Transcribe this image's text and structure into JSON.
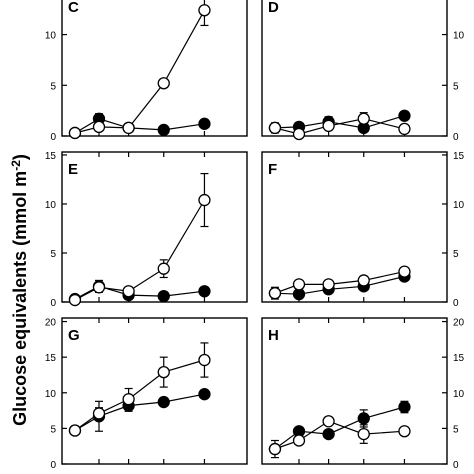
{
  "y_title": "Glucose equivalents (mmol m",
  "y_title_sup": "-2",
  "y_title_end": ")",
  "chart_data": [
    {
      "panel": "C",
      "type": "line",
      "y_axis_side": "left",
      "yticks": [
        0,
        5,
        10
      ],
      "ylim": [
        0,
        14
      ],
      "x": [
        1,
        2,
        3,
        4,
        5
      ],
      "series": [
        {
          "marker": "open",
          "values": [
            0.3,
            0.9,
            0.8,
            5.2,
            12.4
          ],
          "errors": [
            0.2,
            0.4,
            0.3,
            0.4,
            1.5
          ]
        },
        {
          "marker": "filled",
          "values": [
            0.3,
            1.7,
            0.8,
            0.6,
            1.2
          ],
          "errors": [
            0.2,
            0.5,
            0.2,
            0.2,
            0.4
          ]
        }
      ]
    },
    {
      "panel": "D",
      "type": "line",
      "y_axis_side": "right",
      "yticks": [
        0,
        5,
        10
      ],
      "ylim": [
        0,
        14
      ],
      "x": [
        1,
        2,
        3,
        4,
        5
      ],
      "series": [
        {
          "marker": "open",
          "values": [
            0.8,
            0.2,
            1.0,
            1.7,
            0.7
          ],
          "errors": [
            0.3,
            0.2,
            0.4,
            0.6,
            0.3
          ]
        },
        {
          "marker": "filled",
          "values": [
            0.8,
            0.9,
            1.4,
            0.8,
            2.0
          ],
          "errors": [
            0.5,
            0.3,
            0.5,
            0.3,
            0.4
          ]
        }
      ]
    },
    {
      "panel": "E",
      "type": "line",
      "y_axis_side": "left",
      "yticks": [
        0,
        5,
        10,
        15
      ],
      "ylim": [
        0,
        15.3
      ],
      "x": [
        1,
        2,
        3,
        4,
        5
      ],
      "series": [
        {
          "marker": "open",
          "values": [
            0.2,
            1.5,
            1.1,
            3.4,
            10.4
          ],
          "errors": [
            0.2,
            0.5,
            0.4,
            0.9,
            2.7
          ]
        },
        {
          "marker": "filled",
          "values": [
            0.3,
            1.6,
            0.7,
            0.6,
            1.1
          ],
          "errors": [
            0.2,
            0.6,
            0.2,
            0.2,
            0.4
          ]
        }
      ]
    },
    {
      "panel": "F",
      "type": "line",
      "y_axis_side": "right",
      "yticks": [
        0,
        5,
        10,
        15
      ],
      "ylim": [
        0,
        15.3
      ],
      "x": [
        1,
        2,
        3,
        4,
        5
      ],
      "series": [
        {
          "marker": "open",
          "values": [
            0.9,
            1.8,
            1.8,
            2.2,
            3.1
          ],
          "errors": [
            0.6,
            0.3,
            0.3,
            0.3,
            0.3
          ]
        },
        {
          "marker": "filled",
          "values": [
            0.9,
            0.8,
            1.3,
            1.6,
            2.6
          ],
          "errors": [
            0.3,
            0.2,
            0.3,
            0.3,
            0.3
          ]
        }
      ]
    },
    {
      "panel": "G",
      "type": "line",
      "y_axis_side": "left",
      "yticks": [
        0,
        5,
        10,
        15,
        20
      ],
      "ylim": [
        0,
        20.5
      ],
      "x": [
        1,
        2,
        3,
        4,
        5
      ],
      "series": [
        {
          "marker": "open",
          "values": [
            4.7,
            7.1,
            9.1,
            12.9,
            14.6
          ],
          "errors": [
            0.3,
            0.8,
            1.5,
            2.1,
            2.4
          ]
        },
        {
          "marker": "filled",
          "values": [
            4.7,
            6.7,
            8.2,
            8.7,
            9.8
          ],
          "errors": [
            0.3,
            2.1,
            0.8,
            0.5,
            0.4
          ]
        }
      ]
    },
    {
      "panel": "H",
      "type": "line",
      "y_axis_side": "right",
      "yticks": [
        0,
        5,
        10,
        15,
        20
      ],
      "ylim": [
        0,
        20.5
      ],
      "x": [
        1,
        2,
        3,
        4,
        5
      ],
      "series": [
        {
          "marker": "open",
          "values": [
            2.1,
            3.3,
            6.0,
            4.2,
            4.6
          ],
          "errors": [
            0.4,
            0.4,
            0.5,
            1.3,
            0.3
          ]
        },
        {
          "marker": "filled",
          "values": [
            2.1,
            4.6,
            4.2,
            6.4,
            8.0
          ],
          "errors": [
            1.2,
            0.3,
            0.4,
            1.2,
            0.8
          ]
        }
      ]
    }
  ]
}
